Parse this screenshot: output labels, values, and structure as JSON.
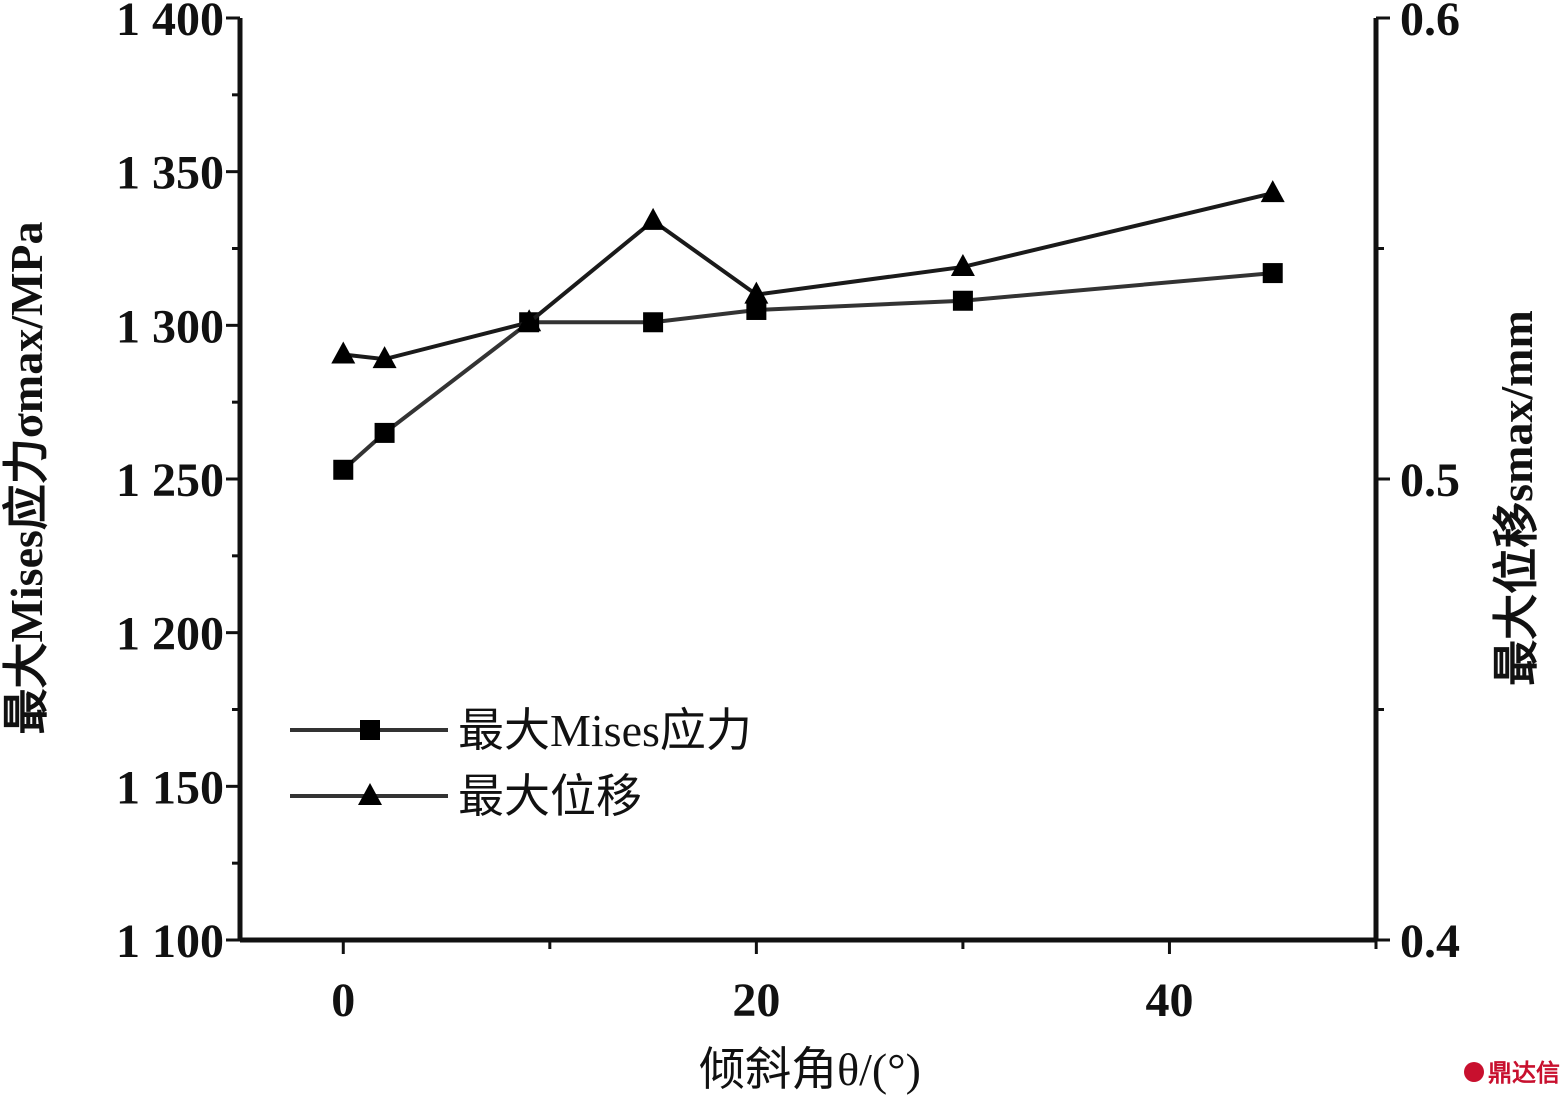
{
  "chart_data": {
    "type": "line",
    "xlabel": "倾斜角θ/(°)",
    "ylabel_left": "最大Mises应力σmax/MPa",
    "ylabel_right": "最大位移smax/mm",
    "xlim": [
      -5,
      50
    ],
    "ylim_left": [
      1100,
      1400
    ],
    "ylim_right": [
      0.4,
      0.6
    ],
    "x_ticks": [
      "0",
      "20",
      "40"
    ],
    "x_tick_values": [
      0,
      20,
      40
    ],
    "y_left_ticks": [
      "1 100",
      "1 150",
      "1 200",
      "1 250",
      "1 300",
      "1 350",
      "1 400"
    ],
    "y_left_tick_values": [
      1100,
      1150,
      1200,
      1250,
      1300,
      1350,
      1400
    ],
    "y_right_ticks": [
      "0.4",
      "0.5",
      "0.6"
    ],
    "y_right_tick_values": [
      0.4,
      0.5,
      0.6
    ],
    "legend_position": "lower-left",
    "series": [
      {
        "name": "最大Mises应力",
        "axis": "left",
        "marker": "square",
        "x": [
          0,
          2,
          9,
          15,
          20,
          30,
          45
        ],
        "values": [
          1253,
          1265,
          1301,
          1301,
          1305,
          1308,
          1317
        ]
      },
      {
        "name": "最大位移",
        "axis": "right",
        "marker": "triangle",
        "x": [
          0,
          2,
          9,
          15,
          20,
          30,
          45
        ],
        "values": [
          0.527,
          0.526,
          0.534,
          0.556,
          0.54,
          0.546,
          0.562
        ]
      }
    ]
  },
  "watermark": "鼎达信"
}
